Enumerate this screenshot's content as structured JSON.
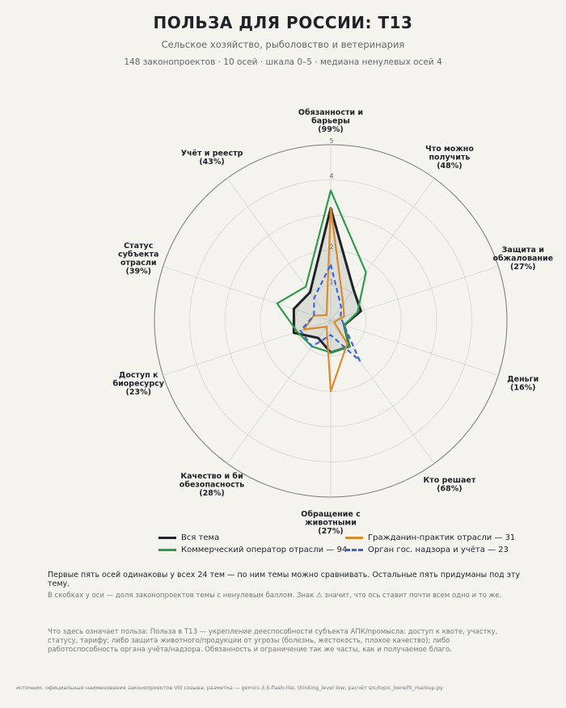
{
  "header": {
    "title": "ПОЛЬЗА ДЛЯ РОССИИ: Т13",
    "subtitle": "Сельское хозяйство, рыболовство и ветеринария",
    "meta": "148 законопроектов · 10 осей · шкала 0–5 · медиана ненулевых осей 4"
  },
  "chart_data": {
    "type": "radar",
    "scale": [
      0,
      5
    ],
    "ticks": [
      "1",
      "2",
      "3",
      "4",
      "5"
    ],
    "axes": [
      {
        "label": [
          "Обязанности и",
          "барьеры",
          "(99%)"
        ]
      },
      {
        "label": [
          "Что можно",
          "получить",
          "(48%)"
        ]
      },
      {
        "label": [
          "Защита и",
          "обжалование",
          "(27%)"
        ]
      },
      {
        "label": [
          "Деньги",
          "(16%)"
        ]
      },
      {
        "label": [
          "Кто решает",
          "(68%)"
        ]
      },
      {
        "label": [
          "Обращение с",
          "животными",
          "(27%)"
        ]
      },
      {
        "label": [
          "Качество и би",
          "обезопасность",
          "(28%)"
        ]
      },
      {
        "label": [
          "Доступ к",
          "биоресурсу",
          "(23%)"
        ]
      },
      {
        "label": [
          "Статус",
          "субъекта",
          "отрасли",
          "(39%)"
        ]
      },
      {
        "label": [
          "Учёт и реестр",
          "(43%)"
        ]
      }
    ],
    "series": [
      {
        "name": "Вся тема",
        "color": "#1f2328",
        "dash": false,
        "fill": true,
        "values": [
          3.2,
          1.1,
          0.9,
          0.4,
          0.9,
          0.9,
          0.6,
          1.1,
          1.1,
          1.0
        ]
      },
      {
        "name": "Коммерческий оператор отрасли — 94",
        "color": "#2e9a4e",
        "dash": false,
        "fill": false,
        "values": [
          3.7,
          1.7,
          0.8,
          0.4,
          0.9,
          0.9,
          0.9,
          1.0,
          1.6,
          1.2
        ]
      },
      {
        "name": "Гражданин-практик отрасли — 31",
        "color": "#d98a2b",
        "dash": false,
        "fill": false,
        "values": [
          3.2,
          0.6,
          0.4,
          0.1,
          0.8,
          2.0,
          0.2,
          0.8,
          0.5,
          0.2
        ]
      },
      {
        "name": "Орган гос. надзора и учёта — 23",
        "color": "#3a66d1",
        "dash": true,
        "fill": false,
        "values": [
          1.6,
          0.5,
          0.3,
          0.4,
          1.4,
          0.4,
          0.9,
          0.9,
          0.5,
          0.8
        ]
      }
    ]
  },
  "notes": {
    "line1": "Первые пять осей одинаковы у всех 24 тем — по ним темы можно сравнивать. Остальные пять придуманы под эту тему.",
    "line2": "В скобках у оси — доля законопроектов темы с ненулевым баллом. Знак ⚠ значит, что ось ставит почти всем одно и то же.",
    "line3": "Что здесь означает польза: Польза в Т13 — укрепление дееспособности субъекта АПК/промысла: доступ к квоте, участку, статусу, тарифу; либо защита животного/продукции от угрозы (болезнь, жестокость, плохое качество); либо работоспособность органа учёта/надзора. Обязанность и ограничение так же часты, как и получаемое благо."
  },
  "source": "источник: официальные наименования законопроектов VIII созыва; разметка — gemini-3.5-flash-lite, thinking_level low; расчёт src/topic_benefit_markup.py"
}
